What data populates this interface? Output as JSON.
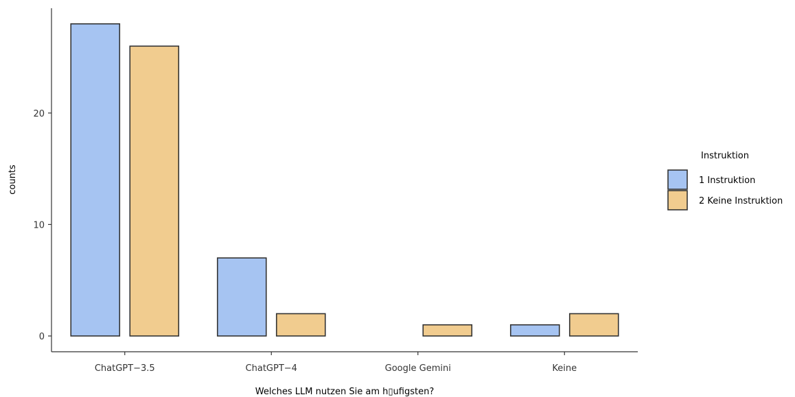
{
  "chart_data": {
    "type": "bar",
    "categories": [
      "ChatGPT−3.5",
      "ChatGPT−4",
      "Google Gemini",
      "Keine"
    ],
    "series": [
      {
        "name": "1 Instruktion",
        "values": [
          28,
          7,
          0,
          1
        ],
        "color": "#a6c4f2"
      },
      {
        "name": "2 Keine Instruktion",
        "values": [
          26,
          2,
          1,
          2
        ],
        "color": "#f1cc8f"
      }
    ],
    "xlabel": "Welches LLM nutzen Sie am h▯ufigsten?",
    "ylabel": "counts",
    "ylim": [
      0,
      29.4
    ],
    "yticks": [
      0,
      10,
      20
    ],
    "legend_title": "Instruktion",
    "legend_position": "right",
    "grid": false
  }
}
